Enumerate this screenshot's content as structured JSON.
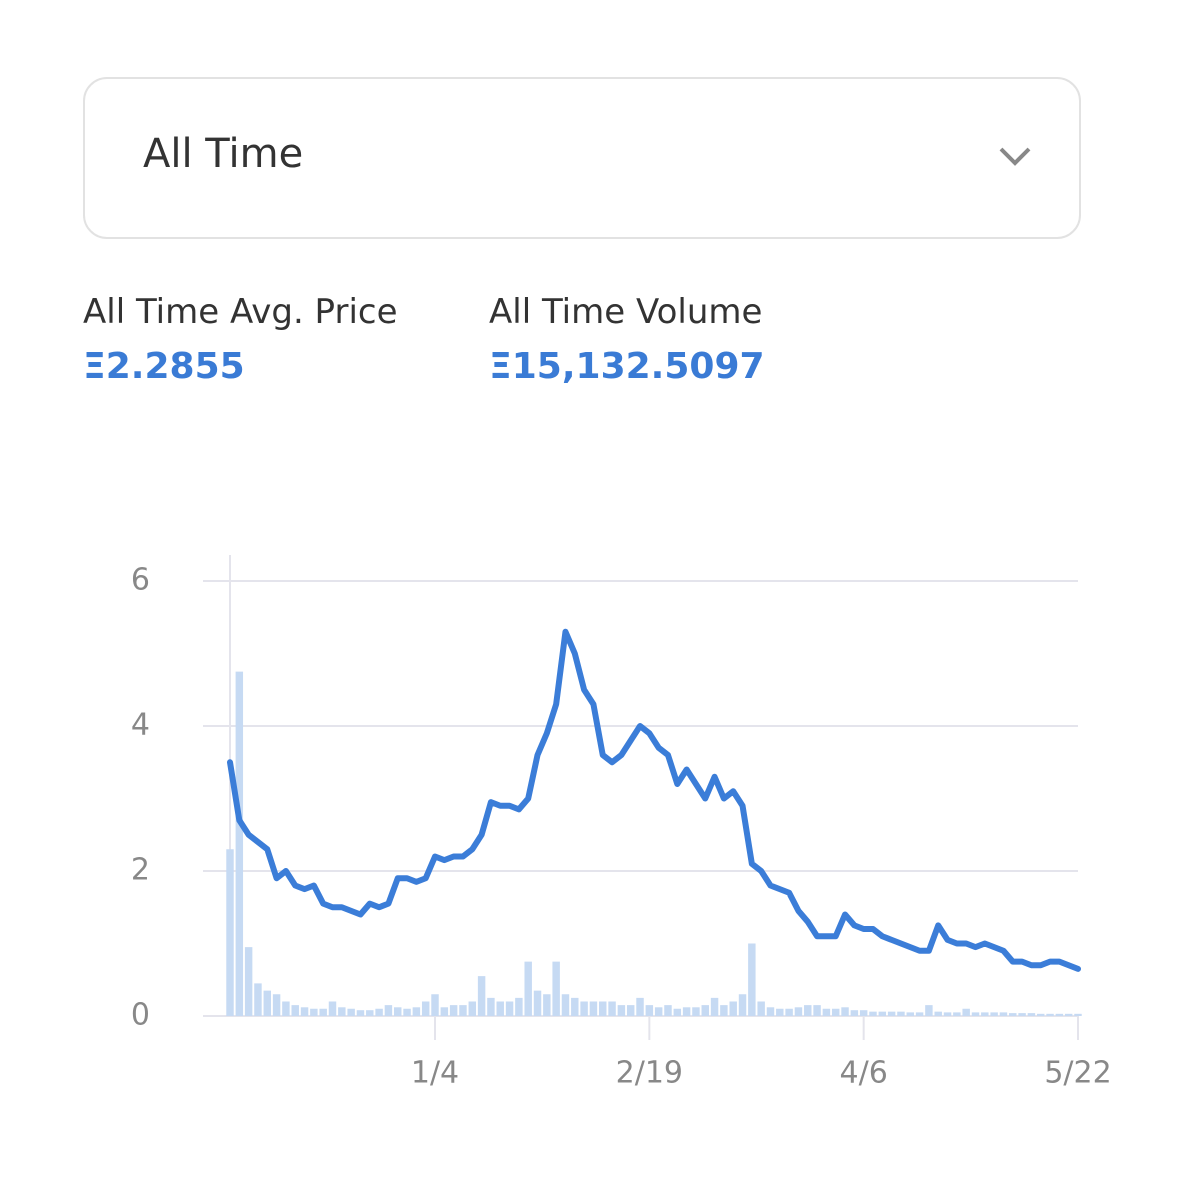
{
  "dropdown": {
    "selected": "All Time"
  },
  "stats": [
    {
      "label": "All Time Avg. Price",
      "value": "Ξ2.2855"
    },
    {
      "label": "All Time Volume",
      "value": "Ξ15,132.5097"
    }
  ],
  "chart_data": {
    "type": "line",
    "categories": [
      null,
      null,
      null,
      null,
      null,
      null,
      null,
      null,
      null,
      null,
      null,
      null,
      null,
      null,
      null,
      null,
      null,
      null,
      null,
      null,
      null,
      null,
      "1/4",
      null,
      null,
      null,
      null,
      null,
      null,
      null,
      null,
      null,
      null,
      null,
      null,
      null,
      null,
      null,
      null,
      null,
      null,
      null,
      null,
      null,
      null,
      "2/19",
      null,
      null,
      null,
      null,
      null,
      null,
      null,
      null,
      null,
      null,
      null,
      null,
      null,
      null,
      null,
      null,
      null,
      null,
      null,
      null,
      null,
      null,
      "4/6",
      null,
      null,
      null,
      null,
      null,
      null,
      null,
      null,
      null,
      null,
      null,
      null,
      null,
      null,
      null,
      null,
      null,
      null,
      null,
      null,
      null,
      null,
      "5/22"
    ],
    "series": [
      {
        "type": "line",
        "color": "#3b7dd8",
        "values": [
          3.5,
          2.7,
          2.5,
          2.4,
          2.3,
          1.9,
          2.0,
          1.8,
          1.75,
          1.8,
          1.55,
          1.5,
          1.5,
          1.45,
          1.4,
          1.55,
          1.5,
          1.55,
          1.9,
          1.9,
          1.85,
          1.9,
          2.2,
          2.15,
          2.2,
          2.2,
          2.3,
          2.5,
          2.95,
          2.9,
          2.9,
          2.85,
          3.0,
          3.6,
          3.9,
          4.3,
          5.3,
          5.0,
          4.5,
          4.3,
          3.6,
          3.5,
          3.6,
          3.8,
          4.0,
          3.9,
          3.7,
          3.6,
          3.2,
          3.4,
          3.2,
          3.0,
          3.3,
          3.0,
          3.1,
          2.9,
          2.1,
          2.0,
          1.8,
          1.75,
          1.7,
          1.45,
          1.3,
          1.1,
          1.1,
          1.1,
          1.4,
          1.25,
          1.2,
          1.2,
          1.1,
          1.05,
          1.0,
          0.95,
          0.9,
          0.9,
          1.25,
          1.05,
          1.0,
          1.0,
          0.95,
          1.0,
          0.95,
          0.9,
          0.75,
          0.75,
          0.7,
          0.7,
          0.75,
          0.75,
          0.7,
          0.65
        ]
      },
      {
        "type": "bar",
        "color": "#c6daf3",
        "values": [
          2.3,
          4.75,
          0.95,
          0.45,
          0.35,
          0.3,
          0.2,
          0.15,
          0.12,
          0.1,
          0.1,
          0.2,
          0.12,
          0.1,
          0.08,
          0.08,
          0.1,
          0.15,
          0.12,
          0.1,
          0.12,
          0.2,
          0.3,
          0.12,
          0.15,
          0.15,
          0.2,
          0.55,
          0.25,
          0.2,
          0.2,
          0.25,
          0.75,
          0.35,
          0.3,
          0.75,
          0.3,
          0.25,
          0.2,
          0.2,
          0.2,
          0.2,
          0.15,
          0.15,
          0.25,
          0.15,
          0.12,
          0.15,
          0.1,
          0.12,
          0.12,
          0.15,
          0.25,
          0.15,
          0.2,
          0.3,
          1.0,
          0.2,
          0.12,
          0.1,
          0.1,
          0.12,
          0.15,
          0.15,
          0.1,
          0.1,
          0.12,
          0.08,
          0.08,
          0.06,
          0.06,
          0.06,
          0.06,
          0.05,
          0.05,
          0.15,
          0.06,
          0.05,
          0.05,
          0.1,
          0.05,
          0.05,
          0.05,
          0.05,
          0.04,
          0.04,
          0.04,
          0.03,
          0.03,
          0.03,
          0.03,
          0.03
        ]
      }
    ],
    "ylim": [
      0,
      6
    ],
    "yticks": [
      0,
      2,
      4,
      6
    ],
    "grid": true
  }
}
